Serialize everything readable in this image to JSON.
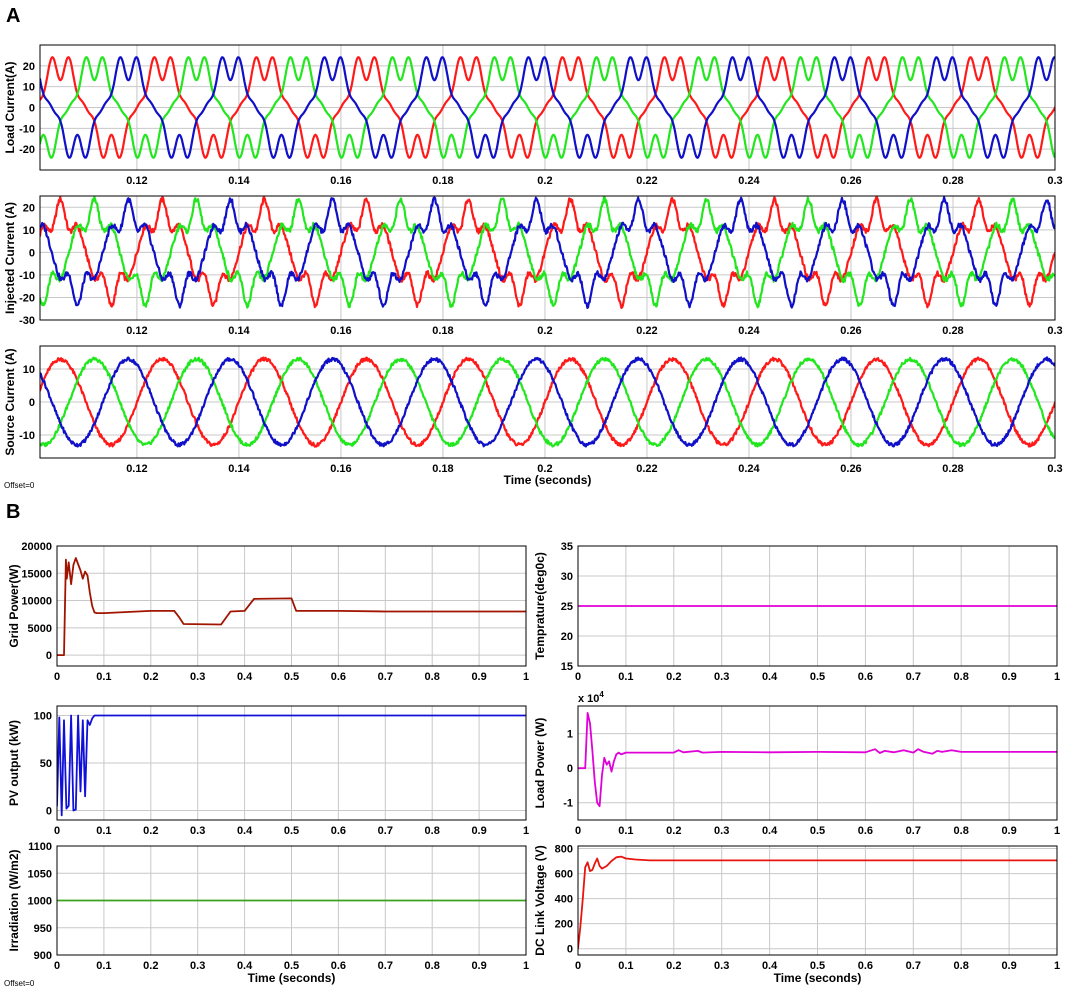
{
  "panel_labels": {
    "a": "A",
    "b": "B"
  },
  "offset_text": "Offset=0",
  "chart_data": [
    {
      "id": "load_current",
      "type": "line",
      "ylabel": "Load Current(A)",
      "xlabel": "",
      "xlim": [
        0.101,
        0.3
      ],
      "ylim": [
        -30,
        30
      ],
      "xticks": [
        0.12,
        0.14,
        0.16,
        0.18,
        0.2,
        0.22,
        0.24,
        0.26,
        0.28,
        0.3
      ],
      "xtick_labels": [
        "0.12",
        "0.14",
        "0.16",
        "0.18",
        "0.2",
        "0.22",
        "0.24",
        "0.26",
        "0.28",
        "0.3"
      ],
      "yticks": [
        -20,
        -10,
        0,
        10,
        20
      ],
      "ytick_labels": [
        "-20",
        "-10",
        "0",
        "10",
        "20"
      ],
      "grid": true,
      "wave": {
        "kind": "load",
        "frequency_hz": 50,
        "amplitude": 21.5
      },
      "series": [
        {
          "color": "#ff1a1a",
          "phase_deg": 0
        },
        {
          "color": "#22e61e",
          "phase_deg": -120
        },
        {
          "color": "#1010c8",
          "phase_deg": 120
        }
      ]
    },
    {
      "id": "injected_current",
      "type": "line",
      "ylabel": "Injected Current (A)",
      "xlabel": "",
      "xlim": [
        0.101,
        0.3
      ],
      "ylim": [
        -30,
        25
      ],
      "xticks": [
        0.12,
        0.14,
        0.16,
        0.18,
        0.2,
        0.22,
        0.24,
        0.26,
        0.28,
        0.3
      ],
      "xtick_labels": [
        "0.12",
        "0.14",
        "0.16",
        "0.18",
        "0.2",
        "0.22",
        "0.24",
        "0.26",
        "0.28",
        "0.3"
      ],
      "yticks": [
        -30,
        -20,
        -10,
        0,
        10,
        20
      ],
      "ytick_labels": [
        "-30",
        "-20",
        "-10",
        "0",
        "10",
        "20"
      ],
      "grid": true,
      "wave": {
        "kind": "injected",
        "frequency_hz": 50,
        "amplitude": 19
      },
      "series": [
        {
          "color": "#ff1a1a",
          "phase_deg": 0
        },
        {
          "color": "#22e61e",
          "phase_deg": -120
        },
        {
          "color": "#1010c8",
          "phase_deg": 120
        }
      ]
    },
    {
      "id": "source_current",
      "type": "line",
      "ylabel": "Source Current (A)",
      "xlabel": "Time (seconds)",
      "xlim": [
        0.101,
        0.3
      ],
      "ylim": [
        -17,
        17
      ],
      "xticks": [
        0.12,
        0.14,
        0.16,
        0.18,
        0.2,
        0.22,
        0.24,
        0.26,
        0.28,
        0.3
      ],
      "xtick_labels": [
        "0.12",
        "0.14",
        "0.16",
        "0.18",
        "0.2",
        "0.22",
        "0.24",
        "0.26",
        "0.28",
        "0.3"
      ],
      "yticks": [
        -10,
        0,
        10
      ],
      "ytick_labels": [
        "-10",
        "0",
        "10"
      ],
      "grid": true,
      "wave": {
        "kind": "sine",
        "frequency_hz": 50,
        "amplitude": 13
      },
      "series": [
        {
          "color": "#ff1a1a",
          "phase_deg": 0
        },
        {
          "color": "#22e61e",
          "phase_deg": -120
        },
        {
          "color": "#1010c8",
          "phase_deg": 120
        }
      ]
    },
    {
      "id": "grid_power",
      "type": "line",
      "ylabel": "Grid Power(W)",
      "xlabel": "",
      "xlim": [
        0,
        1
      ],
      "ylim": [
        -2000,
        20000
      ],
      "xticks": [
        0,
        0.1,
        0.2,
        0.3,
        0.4,
        0.5,
        0.6,
        0.7,
        0.8,
        0.9,
        1
      ],
      "xtick_labels": [
        "0",
        "0.1",
        "0.2",
        "0.3",
        "0.4",
        "0.5",
        "0.6",
        "0.7",
        "0.8",
        "0.9",
        "1"
      ],
      "yticks": [
        0,
        5000,
        10000,
        15000,
        20000
      ],
      "ytick_labels": [
        "0",
        "5000",
        "10000",
        "15000",
        "20000"
      ],
      "grid": true,
      "series": [
        {
          "color": "#a01400",
          "x": [
            0,
            0.015,
            0.019,
            0.021,
            0.025,
            0.03,
            0.035,
            0.04,
            0.05,
            0.055,
            0.06,
            0.065,
            0.07,
            0.075,
            0.08,
            0.085,
            0.1,
            0.15,
            0.2,
            0.25,
            0.26,
            0.27,
            0.35,
            0.37,
            0.4,
            0.42,
            0.5,
            0.51,
            0.55,
            0.6,
            0.7,
            0.8,
            0.9,
            1
          ],
          "y": [
            0,
            0,
            17500,
            14000,
            17000,
            13000,
            16500,
            17800,
            15500,
            14000,
            15300,
            14600,
            11500,
            9000,
            7800,
            7700,
            7700,
            7900,
            8100,
            8100,
            7000,
            5700,
            5600,
            8000,
            8100,
            10300,
            10400,
            8100,
            8100,
            8100,
            8000,
            8000,
            8000,
            8000
          ]
        }
      ]
    },
    {
      "id": "temperature",
      "type": "line",
      "ylabel": "Temprature(deg0c)",
      "xlabel": "",
      "xlim": [
        0,
        1
      ],
      "ylim": [
        15,
        35
      ],
      "xticks": [
        0,
        0.1,
        0.2,
        0.3,
        0.4,
        0.5,
        0.6,
        0.7,
        0.8,
        0.9,
        1
      ],
      "xtick_labels": [
        "0",
        "0.1",
        "0.2",
        "0.3",
        "0.4",
        "0.5",
        "0.6",
        "0.7",
        "0.8",
        "0.9",
        "1"
      ],
      "yticks": [
        15,
        20,
        25,
        30,
        35
      ],
      "ytick_labels": [
        "15",
        "20",
        "25",
        "30",
        "35"
      ],
      "grid": true,
      "series": [
        {
          "color": "#e000d8",
          "x": [
            0,
            1
          ],
          "y": [
            25,
            25
          ]
        }
      ]
    },
    {
      "id": "pv_output",
      "type": "line",
      "ylabel": "PV output (kW)",
      "xlabel": "",
      "xlim": [
        0,
        1
      ],
      "ylim": [
        -10,
        110
      ],
      "xticks": [
        0,
        0.1,
        0.2,
        0.3,
        0.4,
        0.5,
        0.6,
        0.7,
        0.8,
        0.9,
        1
      ],
      "xtick_labels": [
        "0",
        "0.1",
        "0.2",
        "0.3",
        "0.4",
        "0.5",
        "0.6",
        "0.7",
        "0.8",
        "0.9",
        "1"
      ],
      "yticks": [
        0,
        50,
        100
      ],
      "ytick_labels": [
        "0",
        "50",
        "100"
      ],
      "grid": true,
      "series": [
        {
          "color": "#1010d8",
          "x": [
            0,
            0.005,
            0.01,
            0.015,
            0.02,
            0.025,
            0.03,
            0.035,
            0.04,
            0.045,
            0.05,
            0.055,
            0.06,
            0.065,
            0.07,
            0.075,
            0.08,
            0.09,
            0.1,
            0.15,
            0.2,
            1
          ],
          "y": [
            5,
            98,
            -5,
            95,
            2,
            5,
            100,
            0,
            1,
            100,
            20,
            95,
            15,
            95,
            90,
            97,
            100,
            100,
            100,
            100,
            100,
            100
          ]
        }
      ]
    },
    {
      "id": "load_power",
      "type": "line",
      "ylabel": "Load Power (W)",
      "xlabel": "",
      "exponent_label": "x 10^4",
      "xlim": [
        0,
        1
      ],
      "ylim": [
        -1.5,
        1.8
      ],
      "xticks": [
        0,
        0.1,
        0.2,
        0.3,
        0.4,
        0.5,
        0.6,
        0.7,
        0.8,
        0.9,
        1
      ],
      "xtick_labels": [
        "0",
        "0.1",
        "0.2",
        "0.3",
        "0.4",
        "0.5",
        "0.6",
        "0.7",
        "0.8",
        "0.9",
        "1"
      ],
      "yticks": [
        -1,
        0,
        1
      ],
      "ytick_labels": [
        "-1",
        "0",
        "1"
      ],
      "grid": true,
      "series": [
        {
          "color": "#e000d8",
          "x": [
            0,
            0.015,
            0.02,
            0.025,
            0.03,
            0.035,
            0.04,
            0.045,
            0.05,
            0.055,
            0.06,
            0.065,
            0.07,
            0.075,
            0.08,
            0.085,
            0.09,
            0.1,
            0.15,
            0.2,
            0.21,
            0.22,
            0.25,
            0.26,
            0.3,
            0.4,
            0.5,
            0.6,
            0.62,
            0.63,
            0.64,
            0.66,
            0.68,
            0.7,
            0.71,
            0.72,
            0.74,
            0.75,
            0.76,
            0.78,
            0.8,
            0.9,
            1
          ],
          "y": [
            0,
            0,
            1.6,
            1.3,
            0.5,
            -0.4,
            -1.0,
            -1.1,
            -0.2,
            0.3,
            0.1,
            0.2,
            -0.1,
            0.2,
            0.4,
            0.45,
            0.4,
            0.45,
            0.45,
            0.45,
            0.52,
            0.46,
            0.5,
            0.45,
            0.47,
            0.46,
            0.47,
            0.46,
            0.55,
            0.44,
            0.5,
            0.46,
            0.52,
            0.45,
            0.55,
            0.48,
            0.42,
            0.5,
            0.47,
            0.52,
            0.47,
            0.47,
            0.47
          ]
        }
      ]
    },
    {
      "id": "irradiation",
      "type": "line",
      "ylabel": "Irradiation (W/m2)",
      "xlabel": "Time (seconds)",
      "xlim": [
        0,
        1
      ],
      "ylim": [
        900,
        1100
      ],
      "xticks": [
        0,
        0.1,
        0.2,
        0.3,
        0.4,
        0.5,
        0.6,
        0.7,
        0.8,
        0.9,
        1
      ],
      "xtick_labels": [
        "0",
        "0.1",
        "0.2",
        "0.3",
        "0.4",
        "0.5",
        "0.6",
        "0.7",
        "0.8",
        "0.9",
        "1"
      ],
      "yticks": [
        900,
        950,
        1000,
        1050,
        1100
      ],
      "ytick_labels": [
        "900",
        "950",
        "1000",
        "1050",
        "1100"
      ],
      "grid": true,
      "series": [
        {
          "color": "#3aa01e",
          "x": [
            0,
            1
          ],
          "y": [
            1000,
            1000
          ]
        }
      ]
    },
    {
      "id": "dc_link_voltage",
      "type": "line",
      "ylabel": "DC Link Voltage (V)",
      "xlabel": "Time (seconds)",
      "xlim": [
        0,
        1
      ],
      "ylim": [
        -50,
        820
      ],
      "xticks": [
        0,
        0.1,
        0.2,
        0.3,
        0.4,
        0.5,
        0.6,
        0.7,
        0.8,
        0.9,
        1
      ],
      "xtick_labels": [
        "0",
        "0.1",
        "0.2",
        "0.3",
        "0.4",
        "0.5",
        "0.6",
        "0.7",
        "0.8",
        "0.9",
        "1"
      ],
      "yticks": [
        0,
        200,
        400,
        600,
        800
      ],
      "ytick_labels": [
        "0",
        "200",
        "400",
        "600",
        "800"
      ],
      "grid": true,
      "series": [
        {
          "color": "#e8140e",
          "x": [
            0,
            0.005,
            0.01,
            0.015,
            0.02,
            0.025,
            0.03,
            0.035,
            0.04,
            0.045,
            0.05,
            0.06,
            0.07,
            0.08,
            0.09,
            0.1,
            0.12,
            0.15,
            0.2,
            0.3,
            0.5,
            0.7,
            1
          ],
          "y": [
            0,
            180,
            400,
            650,
            690,
            620,
            630,
            680,
            720,
            660,
            640,
            660,
            700,
            730,
            735,
            720,
            712,
            705,
            705,
            705,
            705,
            705,
            705
          ]
        }
      ]
    }
  ]
}
